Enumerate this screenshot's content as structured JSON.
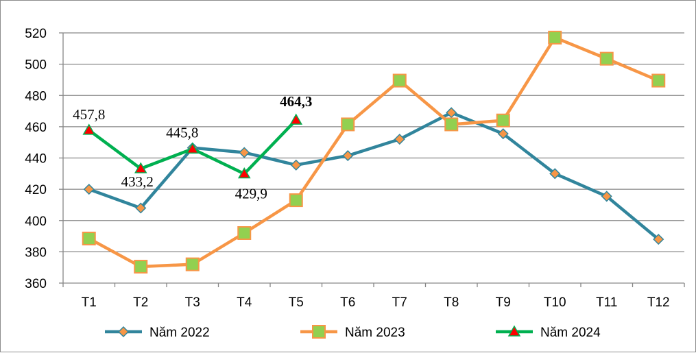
{
  "chart_data": {
    "type": "line",
    "title": "",
    "xlabel": "",
    "ylabel": "",
    "ylim": [
      360,
      520
    ],
    "yticks": [
      360,
      380,
      400,
      420,
      440,
      460,
      480,
      500,
      520
    ],
    "grid": true,
    "legend_position": "bottom",
    "categories": [
      "T1",
      "T2",
      "T3",
      "T4",
      "T5",
      "T6",
      "T7",
      "T8",
      "T9",
      "T10",
      "T11",
      "T12"
    ],
    "series": [
      {
        "name": "Năm 2022",
        "color": "#31859c",
        "marker_color": "#f79646",
        "marker": "diamond",
        "values": [
          420,
          408,
          446.5,
          443.5,
          435.5,
          441.5,
          452,
          469,
          455.5,
          430,
          415.5,
          388
        ]
      },
      {
        "name": "Năm 2023",
        "color": "#f79646",
        "marker_color": "#92d050",
        "marker": "square",
        "values": [
          388.5,
          370.5,
          372,
          392,
          413,
          461.5,
          489.5,
          461.5,
          464,
          517,
          503.5,
          489.5
        ]
      },
      {
        "name": "Năm 2024",
        "color": "#00b050",
        "marker_color": "#ff0000",
        "marker": "triangle",
        "values": [
          457.8,
          433.2,
          445.8,
          429.9,
          464.3,
          null,
          null,
          null,
          null,
          null,
          null,
          null
        ]
      }
    ],
    "annotations": [
      {
        "text": "457,8",
        "series": 2,
        "index": 0,
        "bold": false
      },
      {
        "text": "433,2",
        "series": 2,
        "index": 1,
        "bold": false
      },
      {
        "text": "445,8",
        "series": 2,
        "index": 2,
        "bold": false
      },
      {
        "text": "429,9",
        "series": 2,
        "index": 3,
        "bold": false
      },
      {
        "text": "464,3",
        "series": 2,
        "index": 4,
        "bold": true
      }
    ]
  }
}
